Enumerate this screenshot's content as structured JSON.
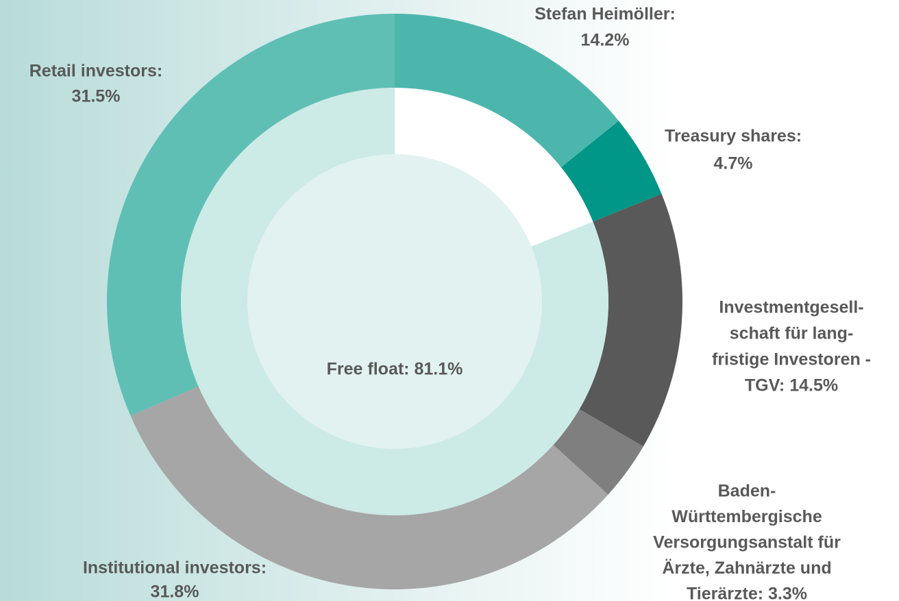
{
  "chart_data": [
    {
      "type": "donut",
      "values": [
        14.2,
        4.7,
        14.5,
        3.3,
        31.8,
        31.5
      ],
      "colors": [
        "#4db6ac",
        "#009688",
        "#595959",
        "#7f7f7f",
        "#a6a6a6",
        "#5fbfb5"
      ],
      "labels": [
        [
          "Stefan Heimöller:",
          "14.2%"
        ],
        [
          "Treasury shares:",
          "4.7%"
        ],
        [
          "Investmentgesell-",
          "schaft für lang-",
          "fristige Investoren -",
          "TGV: 14.5%"
        ],
        [
          "Baden-",
          "Württembergische",
          "Versorgungsanstalt für",
          "Ärzte, Zahnärzte und",
          "Tierärzte: 3.3%"
        ],
        [
          "Institutional investors:",
          "31.8%"
        ],
        [
          "Retail investors:",
          "31.5%"
        ]
      ]
    },
    {
      "type": "donut-inner",
      "values": [
        81.1
      ],
      "colors": [
        "#c3e6e2"
      ],
      "labels": [
        [
          "Free float: 81.1%"
        ]
      ]
    }
  ]
}
